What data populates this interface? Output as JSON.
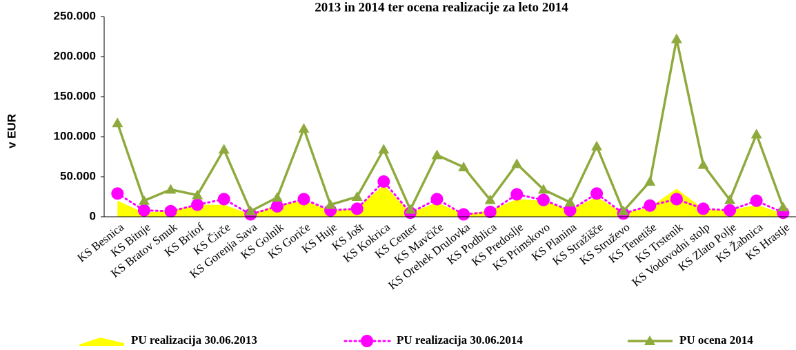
{
  "chart_data": {
    "type": "line",
    "title": "2013 in 2014 ter ocena realizacije za leto 2014",
    "y_label": "v EUR",
    "categories": [
      "KS Besnica",
      "KS Bitnje",
      "KS Bratov Smuk",
      "KS Britof",
      "KS Čirče",
      "KS Gorenja Sava",
      "KS Golnik",
      "KS Goriče",
      "KS Huje",
      "KS Jošt",
      "KS Kokrica",
      "KS Center",
      "KS Mavčiče",
      "KS Orehek Drulovka",
      "KS Podblica",
      "KS Predoslje",
      "KS Primskovo",
      "KS Planina",
      "KS Stražišče",
      "KS Struževo",
      "KS Tenetiše",
      "KS Trstenik",
      "KS Vodovodni stolp",
      "KS Zlato Polje",
      "KS Žabnica",
      "KS Hrastje"
    ],
    "series": [
      {
        "name": "PU realizacija 30.06.2013",
        "color": "#ffff00",
        "style": "area",
        "values": [
          20000,
          5000,
          8000,
          15000,
          15000,
          3000,
          15000,
          20000,
          8000,
          10000,
          40000,
          5000,
          18000,
          3000,
          8000,
          22000,
          20000,
          8000,
          25000,
          4000,
          12000,
          35000,
          10000,
          8000,
          15000,
          4000
        ]
      },
      {
        "name": "PU realizacija 30.06.2014",
        "color": "#ff00ff",
        "style": "dotted",
        "values": [
          29000,
          8000,
          7000,
          15000,
          22000,
          3000,
          13000,
          22000,
          8000,
          10000,
          44000,
          5000,
          22000,
          3000,
          6000,
          28000,
          21000,
          8000,
          29000,
          4000,
          14000,
          22000,
          10000,
          8000,
          20000,
          5000
        ]
      },
      {
        "name": "PU ocena 2014",
        "color": "#8faa3c",
        "style": "solid",
        "values": [
          117000,
          20000,
          34000,
          27000,
          84000,
          7000,
          24000,
          110000,
          15000,
          25000,
          84000,
          9000,
          77000,
          62000,
          21000,
          66000,
          34000,
          18000,
          88000,
          7000,
          44000,
          222000,
          65000,
          21000,
          103000,
          12000
        ]
      }
    ],
    "ylim": [
      0,
      250000
    ],
    "yticks": [
      0,
      {
        "value": 50000,
        "label": "50.000"
      },
      {
        "value": 100000,
        "label": "100.000"
      },
      {
        "value": 150000,
        "label": "150.000"
      },
      {
        "value": 200000,
        "label": "200.000"
      },
      {
        "value": 250000,
        "label": "250.000"
      }
    ]
  }
}
